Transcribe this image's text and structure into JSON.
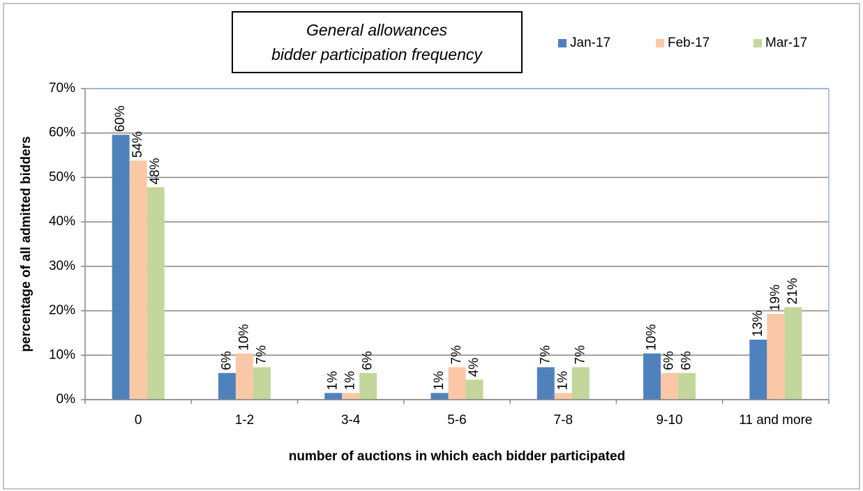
{
  "chart_data": {
    "type": "bar",
    "title": [
      "General allowances",
      "bidder participation frequency"
    ],
    "x_label": "number of auctions in which each bidder participated",
    "y_label": "percentage of all admitted bidders",
    "categories": [
      "0",
      "1-2",
      "3-4",
      "5-6",
      "7-8",
      "9-10",
      "11 and more"
    ],
    "series": [
      {
        "name": "Jan-17",
        "color": "#4f81bd",
        "values": [
          59.6,
          6,
          1.5,
          1.5,
          7.3,
          10.4,
          13.5
        ],
        "value_labels": [
          "60%",
          "6%",
          "1%",
          "1%",
          "7%",
          "10%",
          "13%"
        ]
      },
      {
        "name": "Feb-17",
        "color": "#fac8a6",
        "values": [
          53.8,
          10.4,
          1.5,
          7.3,
          1.5,
          6,
          19.3
        ],
        "value_labels": [
          "54%",
          "10%",
          "1%",
          "7%",
          "1%",
          "6%",
          "19%"
        ]
      },
      {
        "name": "Mar-17",
        "color": "#c3d69b",
        "values": [
          47.8,
          7.3,
          6,
          4.5,
          7.3,
          6,
          20.8
        ],
        "value_labels": [
          "48%",
          "7%",
          "6%",
          "4%",
          "7%",
          "6%",
          "21%"
        ]
      }
    ],
    "ylim": [
      0,
      70
    ],
    "yticks": [
      {
        "value": 0,
        "label": "0%"
      },
      {
        "value": 10,
        "label": "10%"
      },
      {
        "value": 20,
        "label": "20%"
      },
      {
        "value": 30,
        "label": "30%"
      },
      {
        "value": 40,
        "label": "40%"
      },
      {
        "value": 50,
        "label": "50%"
      },
      {
        "value": 60,
        "label": "60%"
      },
      {
        "value": 70,
        "label": "70%"
      }
    ],
    "grid": true,
    "legend": "top-right"
  }
}
